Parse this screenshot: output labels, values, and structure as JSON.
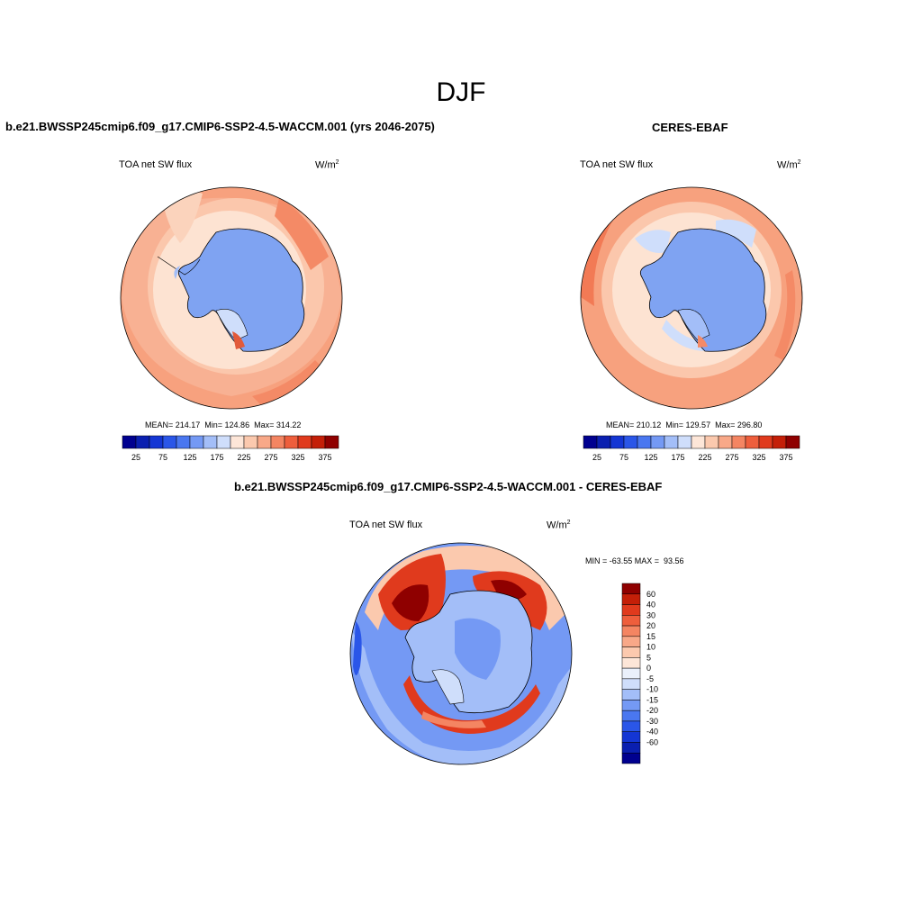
{
  "figure": {
    "season": "DJF",
    "variable": "TOA net SW flux",
    "units_base": "W/m",
    "units_exp": "2"
  },
  "panels": {
    "model": {
      "title": "b.e21.BWSSP245cmip6.f09_g17.CMIP6-SSP2-4.5-WACCM.001 (yrs 2046-2075)",
      "stats": "MEAN= 214.17  Min= 124.86  Max= 314.22"
    },
    "obs": {
      "title": "CERES-EBAF",
      "stats": "MEAN= 210.12  Min= 129.57  Max= 296.80"
    },
    "diff": {
      "title": "b.e21.BWSSP245cmip6.f09_g17.CMIP6-SSP2-4.5-WACCM.001 - CERES-EBAF",
      "stats": "MIN = -63.55 MAX =  93.56"
    }
  },
  "colorbars": {
    "absolute": {
      "colors": [
        "#00008f",
        "#0a1fb0",
        "#1436d4",
        "#2a56e8",
        "#4a77f0",
        "#7499f4",
        "#a3bef8",
        "#cfdefb",
        "#fde6d8",
        "#fbc9ae",
        "#f8a888",
        "#f48562",
        "#ee5e3c",
        "#e03a1d",
        "#c41f08",
        "#8f0000"
      ],
      "tick_labels": [
        "25",
        "75",
        "125",
        "175",
        "225",
        "275",
        "325",
        "375"
      ]
    },
    "difference": {
      "colors": [
        "#8f0000",
        "#c41f08",
        "#e03a1d",
        "#ee5e3c",
        "#f48562",
        "#f8a888",
        "#fbc9ae",
        "#fde6d8",
        "#eaf0fb",
        "#cfdefb",
        "#a3bef8",
        "#7499f4",
        "#4a77f0",
        "#2a56e8",
        "#1436d4",
        "#0a1fb0",
        "#00008f"
      ],
      "tick_labels": [
        "60",
        "40",
        "30",
        "20",
        "15",
        "10",
        "5",
        "0",
        "-5",
        "-10",
        "-15",
        "-20",
        "-30",
        "-40",
        "-60"
      ]
    }
  }
}
